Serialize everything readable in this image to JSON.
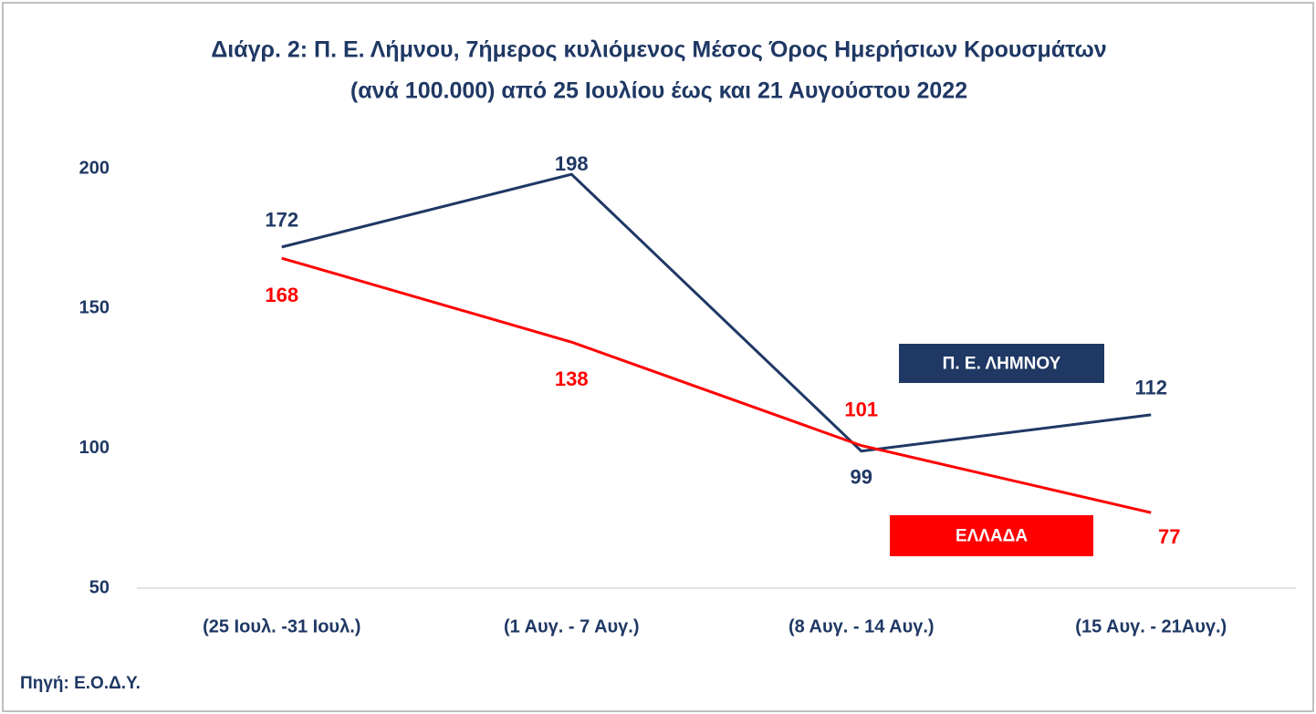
{
  "chart_data": {
    "type": "line",
    "title": "Διάγρ. 2: Π. Ε. Λήμνου, 7ήμερος κυλιόμενος Μέσος Όρος Ημερήσιων Κρουσμάτων",
    "subtitle": "(ανά 100.000) από 25 Ιουλίου έως και 21 Αυγούστου 2022",
    "categories": [
      "(25 Ιουλ. -31 Ιουλ.)",
      "(1 Αυγ. - 7 Αυγ.)",
      "(8 Αυγ. - 14 Αυγ.)",
      "(15 Αυγ. - 21Αυγ.)"
    ],
    "series": [
      {
        "name": "Π. Ε. ΛΗΜΝΟΥ",
        "color": "#1f3864",
        "values": [
          172,
          198,
          99,
          112
        ]
      },
      {
        "name": "ΕΛΛΑΔΑ",
        "color": "#ff0000",
        "values": [
          168,
          138,
          101,
          77
        ]
      }
    ],
    "ylim": [
      50,
      200
    ],
    "yticks": [
      50,
      100,
      150,
      200
    ],
    "grid": false,
    "source": "Πηγή: Ε.Ο.Δ.Υ."
  }
}
